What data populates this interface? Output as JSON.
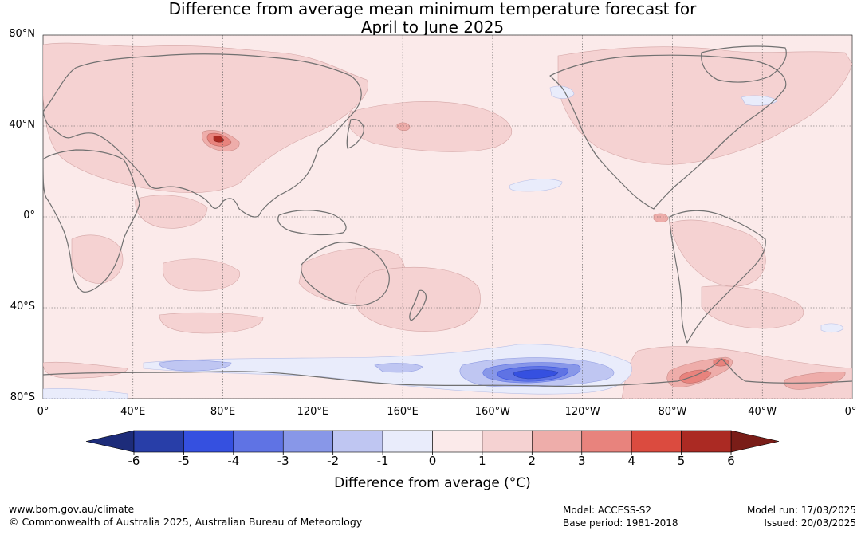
{
  "title_line1": "Difference from average mean minimum temperature forecast for",
  "title_line2": "April to June 2025",
  "map": {
    "lat_labels": [
      "80°N",
      "40°N",
      "0°",
      "40°S",
      "80°S"
    ],
    "lon_labels": [
      "0°",
      "40°E",
      "80°E",
      "120°E",
      "160°E",
      "160°W",
      "120°W",
      "80°W",
      "40°W",
      "0°"
    ],
    "lat_values": [
      80,
      40,
      0,
      -40,
      -80
    ],
    "lon_values": [
      0,
      40,
      80,
      120,
      160,
      200,
      240,
      280,
      320,
      360
    ],
    "projection": "equirectangular, centered on 180°",
    "grid": true
  },
  "colorbar": {
    "ticks": [
      "-6",
      "-5",
      "-4",
      "-3",
      "-2",
      "-1",
      "0",
      "1",
      "2",
      "3",
      "4",
      "5",
      "6"
    ],
    "colors": [
      "#283ea8",
      "#3550e0",
      "#5f73e4",
      "#8897e8",
      "#bfc6f2",
      "#e9ecfb",
      "#fbeaea",
      "#f5d2d2",
      "#eeadaa",
      "#e8837d",
      "#db4b3f",
      "#ab2a23"
    ],
    "under_color": "#1d2c7a",
    "over_color": "#7a1d18",
    "extend": "both"
  },
  "axis_title": "Difference from average (°C)",
  "footer": {
    "url": "www.bom.gov.au/climate",
    "copyright": "© Commonwealth of Australia 2025, Australian Bureau of Meteorology",
    "model": "Model: ACCESS-S2",
    "base_period": "Base period: 1981-2018",
    "model_run": "Model run: 17/03/2025",
    "issued": "Issued: 20/03/2025"
  },
  "colors": {
    "land_outline": "#707070",
    "background_anomaly": "#fbeaea"
  }
}
